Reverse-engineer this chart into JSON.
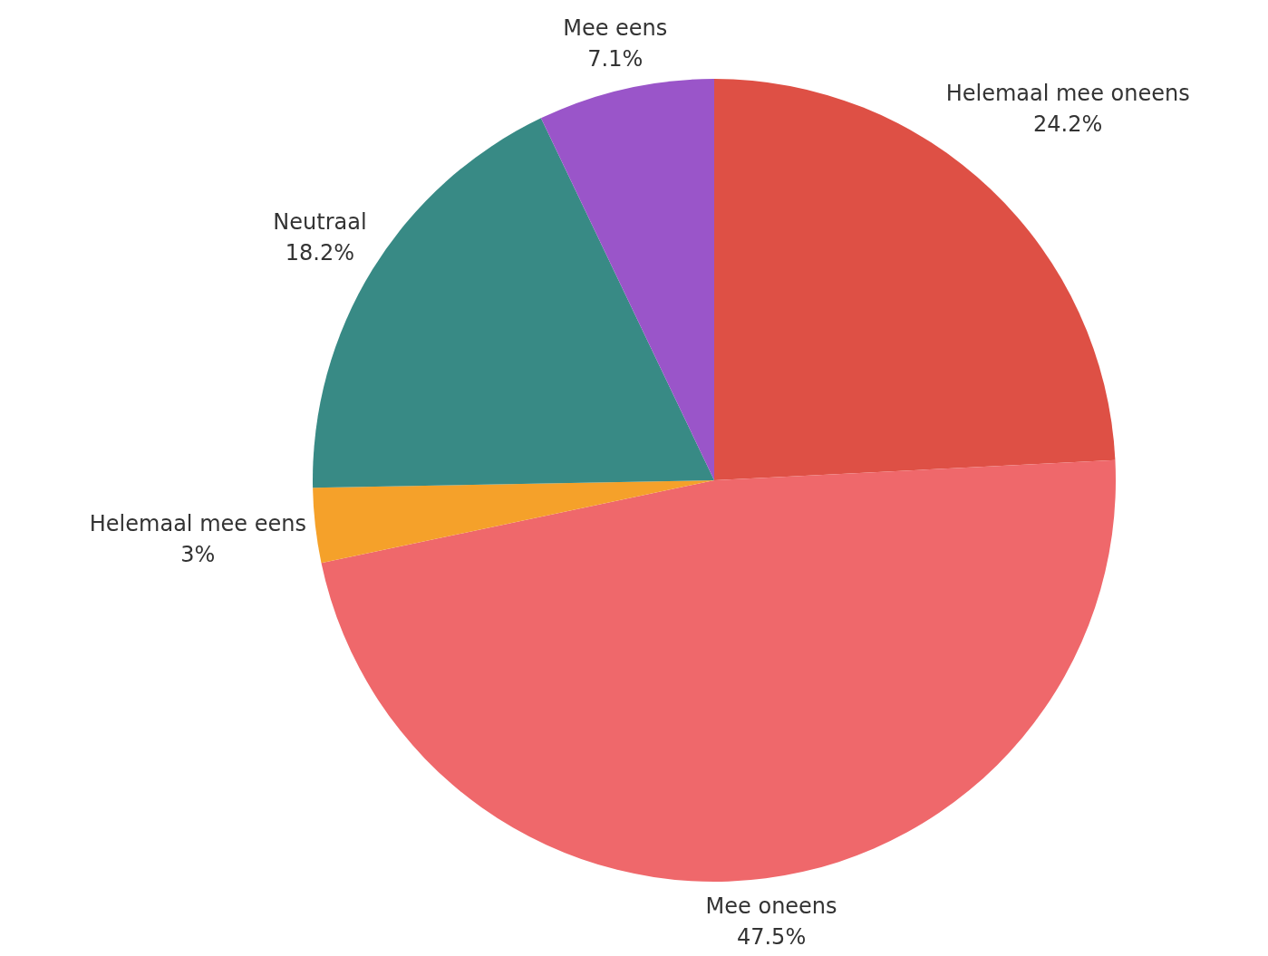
{
  "chart_data": {
    "type": "pie",
    "categories": [
      "Helemaal mee oneens",
      "Mee oneens",
      "Helemaal mee eens",
      "Neutraal",
      "Mee eens"
    ],
    "values": [
      24.2,
      47.5,
      3,
      18.2,
      7.1
    ],
    "colors": [
      "#de5045",
      "#ef686b",
      "#f5a12a",
      "#388a85",
      "#9a55c9"
    ],
    "value_labels": [
      "24.2%",
      "47.5%",
      "3%",
      "18.2%",
      "7.1%"
    ]
  }
}
